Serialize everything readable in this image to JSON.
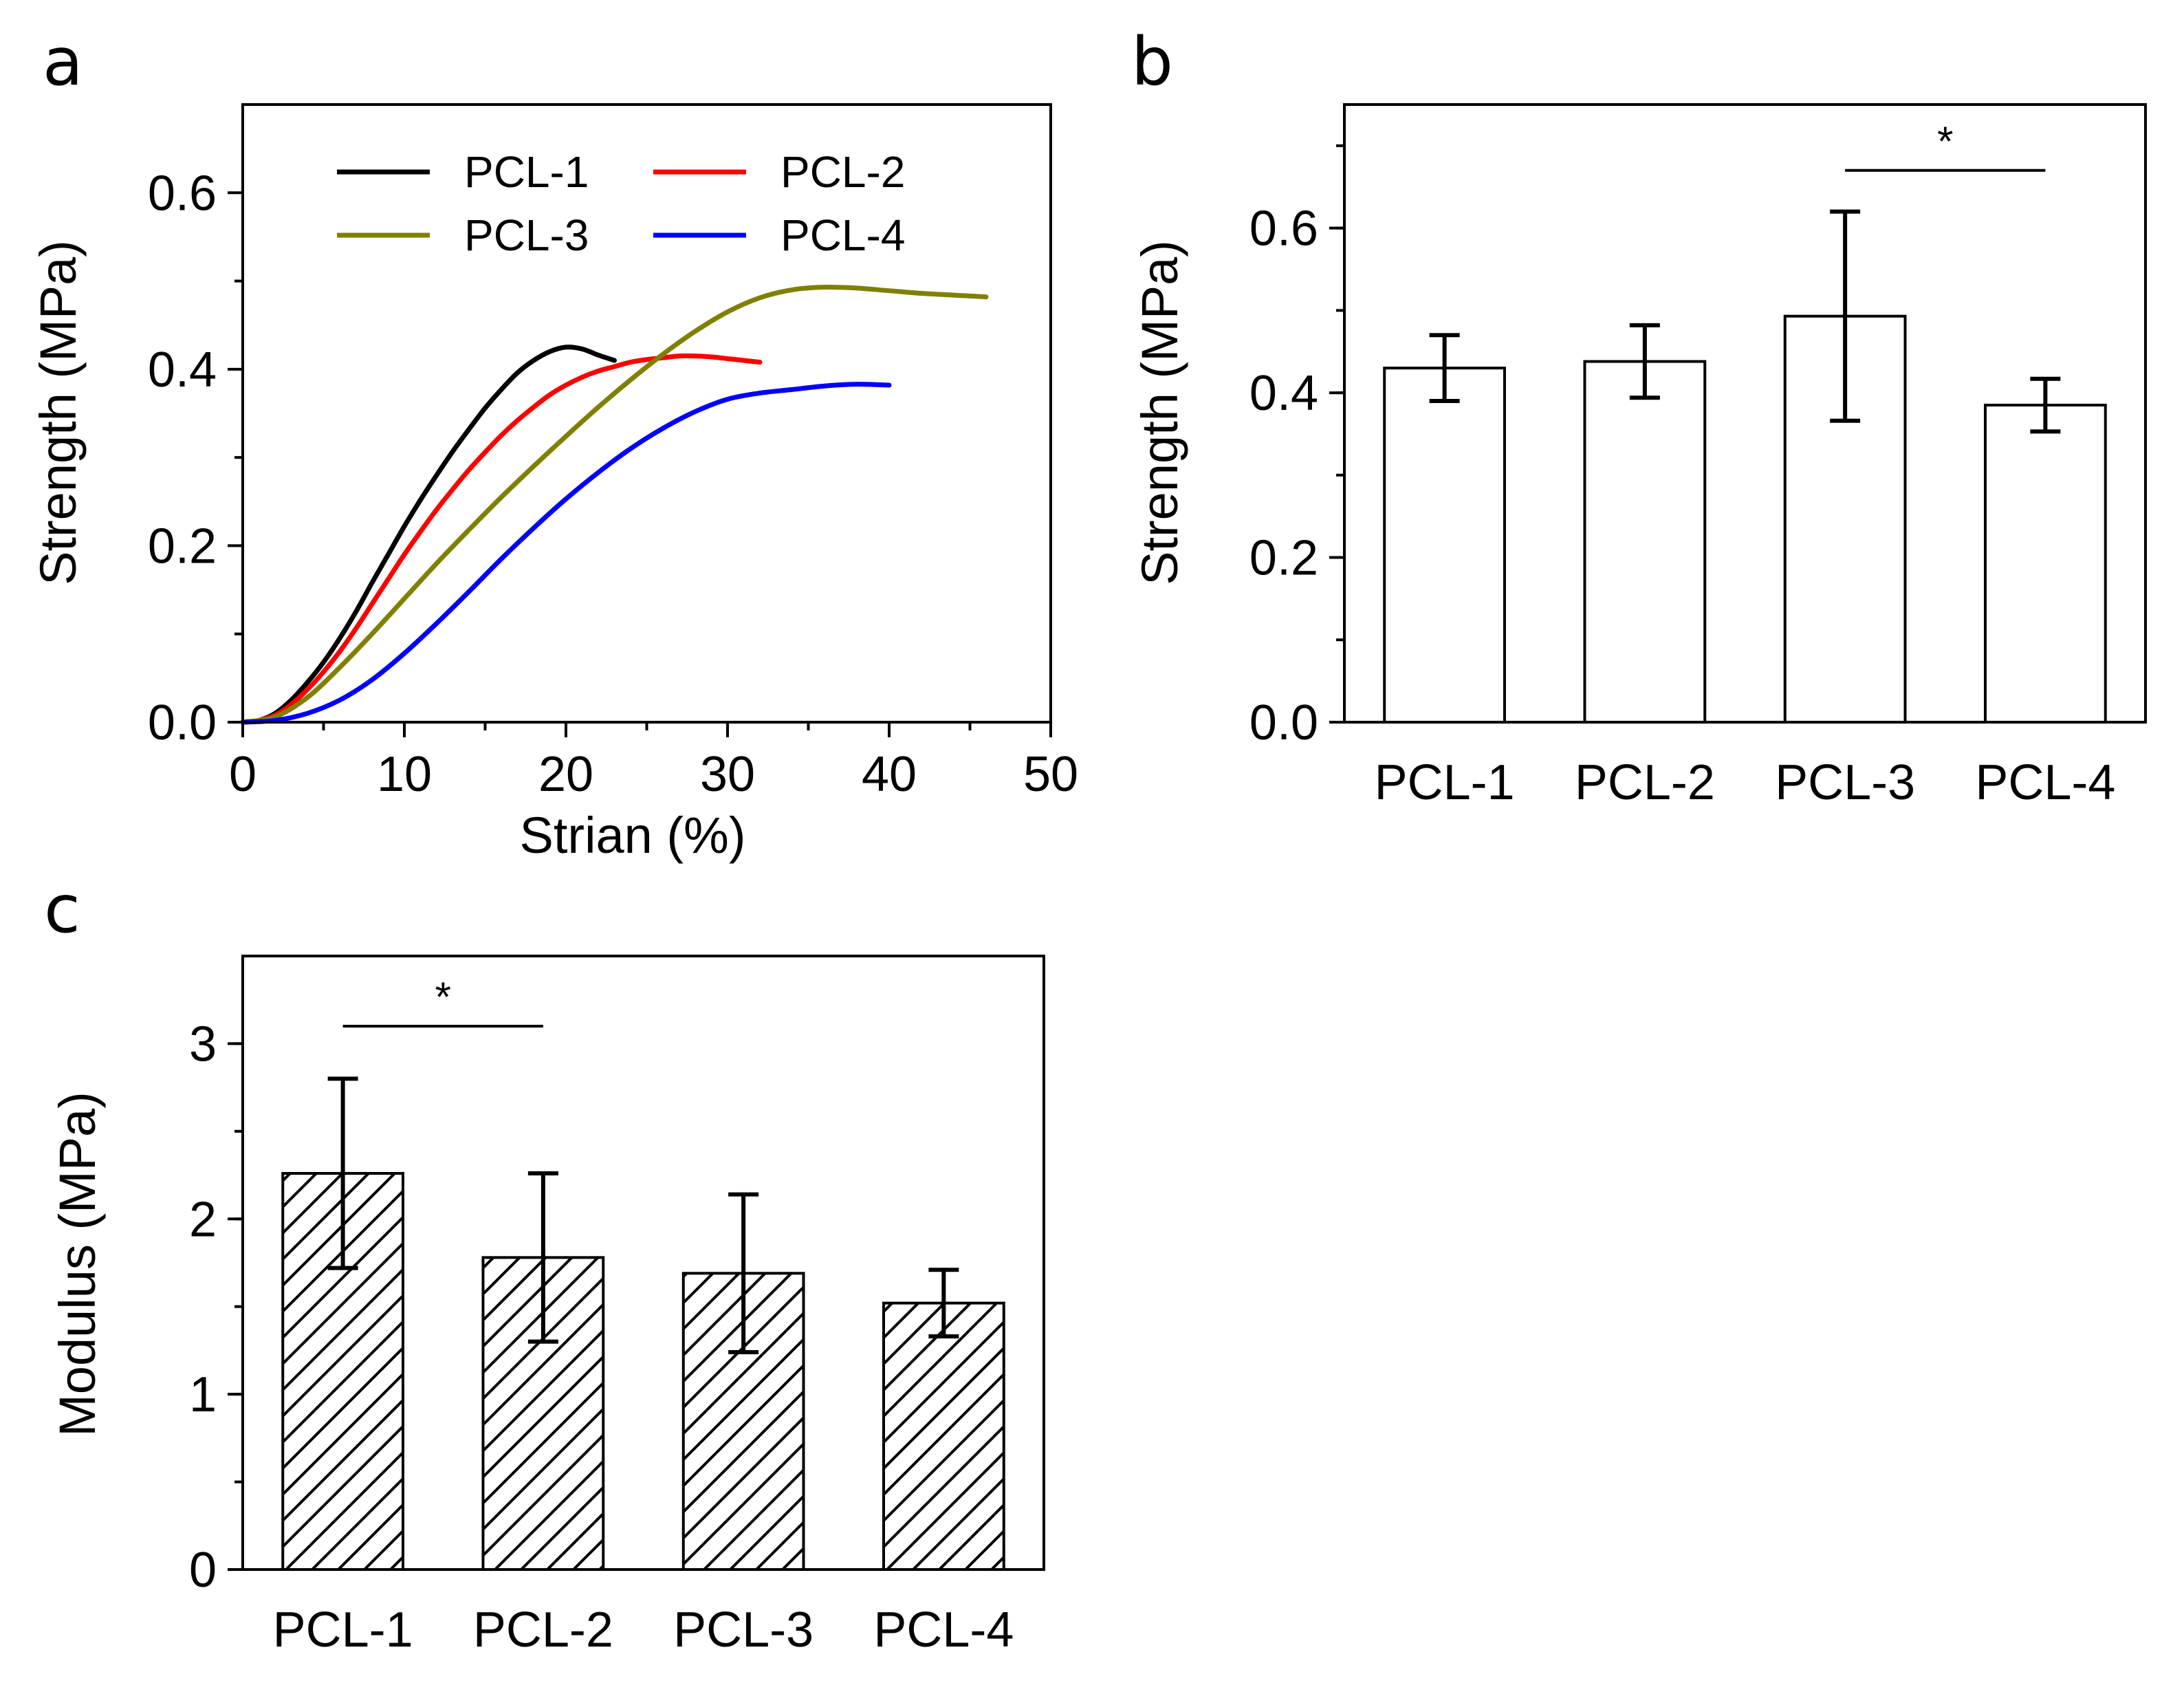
{
  "figure": {
    "panels": [
      "a",
      "b",
      "c"
    ]
  },
  "chart_data": [
    {
      "id": "a",
      "type": "line",
      "panel_label": "a",
      "title": "",
      "xlabel": "Strian (%)",
      "ylabel": "Strength (MPa)",
      "xlim": [
        0,
        50
      ],
      "ylim": [
        0,
        0.7
      ],
      "xticks": [
        0,
        10,
        20,
        30,
        40,
        50
      ],
      "xtick_labels": [
        "0",
        "10",
        "20",
        "30",
        "40",
        "50"
      ],
      "yticks": [
        0.0,
        0.2,
        0.4,
        0.6
      ],
      "ytick_labels": [
        "0.0",
        "0.2",
        "0.4",
        "0.6"
      ],
      "legend_position": "top",
      "series": [
        {
          "name": "PCL-1",
          "color": "#000000",
          "points": [
            [
              0,
              0
            ],
            [
              1,
              0.002
            ],
            [
              2,
              0.01
            ],
            [
              3,
              0.025
            ],
            [
              4,
              0.045
            ],
            [
              5,
              0.068
            ],
            [
              6,
              0.095
            ],
            [
              7,
              0.125
            ],
            [
              8,
              0.158
            ],
            [
              9,
              0.19
            ],
            [
              10,
              0.222
            ],
            [
              11,
              0.252
            ],
            [
              12,
              0.28
            ],
            [
              13,
              0.307
            ],
            [
              14,
              0.332
            ],
            [
              15,
              0.356
            ],
            [
              16,
              0.377
            ],
            [
              17,
              0.396
            ],
            [
              18,
              0.41
            ],
            [
              19,
              0.42
            ],
            [
              20,
              0.425
            ],
            [
              21,
              0.423
            ],
            [
              22,
              0.416
            ],
            [
              23,
              0.41
            ]
          ]
        },
        {
          "name": "PCL-2",
          "color": "#ff0000",
          "points": [
            [
              0,
              0
            ],
            [
              1,
              0.002
            ],
            [
              2,
              0.008
            ],
            [
              3,
              0.02
            ],
            [
              4,
              0.037
            ],
            [
              5,
              0.057
            ],
            [
              6,
              0.08
            ],
            [
              7,
              0.106
            ],
            [
              8,
              0.134
            ],
            [
              9,
              0.162
            ],
            [
              10,
              0.19
            ],
            [
              11,
              0.216
            ],
            [
              12,
              0.241
            ],
            [
              13,
              0.264
            ],
            [
              14,
              0.286
            ],
            [
              15,
              0.306
            ],
            [
              16,
              0.325
            ],
            [
              17,
              0.342
            ],
            [
              18,
              0.357
            ],
            [
              19,
              0.371
            ],
            [
              20,
              0.382
            ],
            [
              21,
              0.391
            ],
            [
              22,
              0.398
            ],
            [
              23,
              0.403
            ],
            [
              24,
              0.408
            ],
            [
              25,
              0.411
            ],
            [
              26,
              0.413
            ],
            [
              27,
              0.415
            ],
            [
              28,
              0.415
            ],
            [
              29,
              0.414
            ],
            [
              30,
              0.412
            ],
            [
              31,
              0.41
            ],
            [
              32,
              0.408
            ]
          ]
        },
        {
          "name": "PCL-3",
          "color": "#808000",
          "points": [
            [
              0,
              0
            ],
            [
              2,
              0.006
            ],
            [
              4,
              0.028
            ],
            [
              6,
              0.062
            ],
            [
              8,
              0.1
            ],
            [
              10,
              0.14
            ],
            [
              12,
              0.18
            ],
            [
              14,
              0.218
            ],
            [
              16,
              0.255
            ],
            [
              18,
              0.29
            ],
            [
              20,
              0.324
            ],
            [
              22,
              0.357
            ],
            [
              24,
              0.388
            ],
            [
              26,
              0.417
            ],
            [
              28,
              0.443
            ],
            [
              30,
              0.465
            ],
            [
              32,
              0.481
            ],
            [
              34,
              0.49
            ],
            [
              36,
              0.493
            ],
            [
              38,
              0.492
            ],
            [
              40,
              0.489
            ],
            [
              42,
              0.486
            ],
            [
              44,
              0.484
            ],
            [
              46,
              0.482
            ]
          ]
        },
        {
          "name": "PCL-4",
          "color": "#0000ff",
          "points": [
            [
              0,
              0
            ],
            [
              2,
              0.002
            ],
            [
              4,
              0.01
            ],
            [
              6,
              0.025
            ],
            [
              8,
              0.048
            ],
            [
              10,
              0.078
            ],
            [
              12,
              0.112
            ],
            [
              14,
              0.148
            ],
            [
              16,
              0.185
            ],
            [
              18,
              0.22
            ],
            [
              20,
              0.253
            ],
            [
              22,
              0.283
            ],
            [
              24,
              0.31
            ],
            [
              26,
              0.333
            ],
            [
              28,
              0.352
            ],
            [
              30,
              0.366
            ],
            [
              32,
              0.373
            ],
            [
              34,
              0.377
            ],
            [
              36,
              0.381
            ],
            [
              38,
              0.383
            ],
            [
              40,
              0.382
            ]
          ]
        }
      ]
    },
    {
      "id": "b",
      "type": "bar",
      "panel_label": "b",
      "title": "",
      "xlabel": "",
      "ylabel": "Strength (MPa)",
      "ylim": [
        0,
        0.75
      ],
      "yticks": [
        0.0,
        0.2,
        0.4,
        0.6
      ],
      "ytick_labels": [
        "0.0",
        "0.2",
        "0.4",
        "0.6"
      ],
      "categories": [
        "PCL-1",
        "PCL-2",
        "PCL-3",
        "PCL-4"
      ],
      "values": [
        0.43,
        0.438,
        0.493,
        0.385
      ],
      "errors": [
        0.04,
        0.044,
        0.127,
        0.032
      ],
      "fill": "none",
      "significance": [
        {
          "from": 2,
          "to": 3,
          "level": 0.67,
          "label": "*"
        }
      ]
    },
    {
      "id": "c",
      "type": "bar",
      "panel_label": "c",
      "title": "",
      "xlabel": "",
      "ylabel": "Modulus (MPa)",
      "ylim": [
        0,
        3.5
      ],
      "yticks": [
        0,
        1,
        2,
        3
      ],
      "ytick_labels": [
        "0",
        "1",
        "2",
        "3"
      ],
      "categories": [
        "PCL-1",
        "PCL-2",
        "PCL-3",
        "PCL-4"
      ],
      "values": [
        2.26,
        1.78,
        1.69,
        1.52
      ],
      "errors": [
        0.54,
        0.48,
        0.45,
        0.19
      ],
      "fill": "hatched",
      "significance": [
        {
          "from": 0,
          "to": 1,
          "level": 3.1,
          "label": "*"
        }
      ]
    }
  ]
}
